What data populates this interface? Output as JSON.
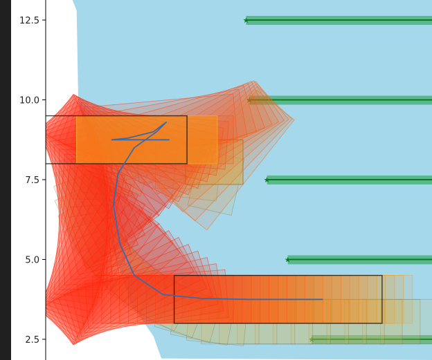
{
  "chart_data": {
    "type": "scatter",
    "title": "",
    "xlabel": "",
    "ylabel": "",
    "xlim": [
      -0.6,
      13.0
    ],
    "ylim": [
      1.9,
      13.3
    ],
    "yticks": [
      2.5,
      5.0,
      7.5,
      10.0,
      12.5
    ],
    "ytick_labels": [
      "2.5",
      "5.0",
      "7.5",
      "10.0",
      "12.5"
    ],
    "grid": false,
    "legend": "none",
    "colors": {
      "background_region": "#a6d8ec",
      "goal_line": "#0a7a1e",
      "goal_band": "#3fae6e",
      "path": "#3b6aa8",
      "car_body_start": "#ff2a10",
      "car_body_end": "#f5a623",
      "trailer": "#cdbb6a",
      "outline": "#111111"
    },
    "region_boundary": [
      [
        0.4,
        13.3
      ],
      [
        0.6,
        12.8
      ],
      [
        0.65,
        10.0
      ],
      [
        0.8,
        9.3
      ],
      [
        1.2,
        7.8
      ],
      [
        1.65,
        5.6
      ],
      [
        2.3,
        3.6
      ],
      [
        3.0,
        2.6
      ],
      [
        3.25,
        1.9
      ]
    ],
    "goal_lines": [
      {
        "x_start": 5.9,
        "x_end": 13.0,
        "y": 12.5
      },
      {
        "x_start": 6.0,
        "x_end": 13.0,
        "y": 10.0
      },
      {
        "x_start": 6.55,
        "x_end": 13.0,
        "y": 7.5
      },
      {
        "x_start": 7.2,
        "x_end": 13.0,
        "y": 5.0
      },
      {
        "x_start": 7.95,
        "x_end": 13.0,
        "y": 2.5
      }
    ],
    "path": [
      [
        8.3,
        3.75
      ],
      [
        6.0,
        3.75
      ],
      [
        4.5,
        3.78
      ],
      [
        3.3,
        3.9
      ],
      [
        2.4,
        4.5
      ],
      [
        1.95,
        5.5
      ],
      [
        1.75,
        6.7
      ],
      [
        1.9,
        7.7
      ],
      [
        2.4,
        8.5
      ],
      [
        3.1,
        9.0
      ],
      [
        3.4,
        9.3
      ],
      [
        3.0,
        9.0
      ],
      [
        2.2,
        8.8
      ],
      [
        1.7,
        8.75
      ],
      [
        3.5,
        8.75
      ]
    ],
    "start_pose": {
      "x": 8.9,
      "y": 3.75,
      "heading_deg": 0
    },
    "end_pose": {
      "x": 2.8,
      "y": 8.75,
      "heading_deg": 0
    }
  }
}
